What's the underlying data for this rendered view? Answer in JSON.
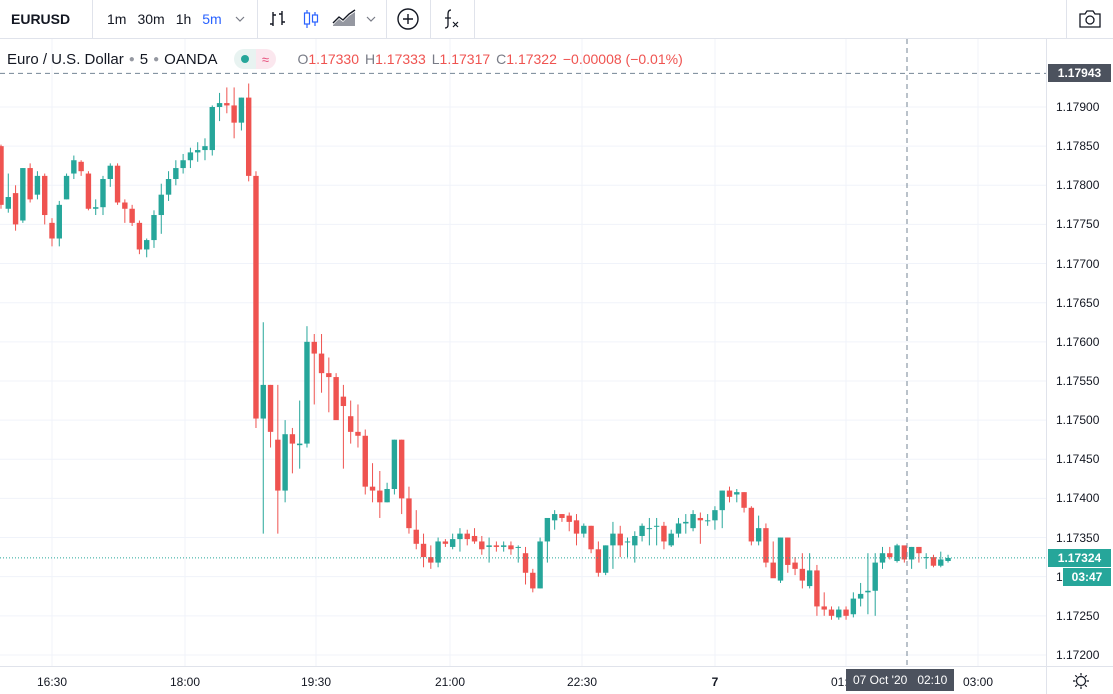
{
  "toolbar": {
    "symbol": "EURUSD",
    "intervals": [
      {
        "label": "1m",
        "active": false
      },
      {
        "label": "30m",
        "active": false
      },
      {
        "label": "1h",
        "active": false
      },
      {
        "label": "5m",
        "active": true
      }
    ],
    "icons": [
      "bars-style-icon",
      "candles-style-icon",
      "area-style-icon",
      "chevron-down-icon",
      "compare-add-icon",
      "indicators-fx-icon",
      "camera-icon"
    ]
  },
  "legend": {
    "title": "Euro / U.S. Dollar",
    "interval": "5",
    "source": "OANDA",
    "open_key": "O",
    "open": "1.17330",
    "high_key": "H",
    "high": "1.17333",
    "low_key": "L",
    "low": "1.17317",
    "close_key": "C",
    "close": "1.17322",
    "change": "−0.00008 (−0.01%)"
  },
  "colors": {
    "up": "#26a69a",
    "down": "#ef5350",
    "grid": "#f0f3fa",
    "crosshair_label": "#4c525e",
    "last_price": "#26a69a"
  },
  "price_axis": {
    "labels": [
      "1.17900",
      "1.17850",
      "1.17800",
      "1.17750",
      "1.17700",
      "1.17650",
      "1.17600",
      "1.17550",
      "1.17500",
      "1.17450",
      "1.17400",
      "1.17350",
      "1.17300",
      "1.17250",
      "1.17200"
    ],
    "crosshair_price": "1.17943",
    "last_price": "1.17324",
    "countdown": "03:47"
  },
  "time_axis": {
    "labels": [
      "16:30",
      "18:00",
      "19:30",
      "21:00",
      "22:30",
      "7",
      "01:30",
      "03:00"
    ],
    "crosshair_time": "07 Oct '20   02:10"
  },
  "chart_data": {
    "type": "candlestick",
    "title": "Euro / U.S. Dollar · 5 · OANDA",
    "xlabel": "",
    "ylabel": "",
    "ylim": [
      1.1718,
      1.1799
    ],
    "x_ticks": [
      "16:30",
      "18:00",
      "19:30",
      "21:00",
      "22:30",
      "7",
      "01:30",
      "03:00"
    ],
    "y_ticks": [
      1.172,
      1.1725,
      1.173,
      1.1735,
      1.174,
      1.1745,
      1.175,
      1.1755,
      1.176,
      1.1765,
      1.177,
      1.1775,
      1.178,
      1.1785,
      1.179
    ],
    "grid": true,
    "crosshair": {
      "price": 1.17943,
      "time": "07 Oct '20 02:10"
    },
    "last_price": 1.17324,
    "ohlc": [
      [
        1.1785,
        1.17852,
        1.1777,
        1.17775
      ],
      [
        1.1777,
        1.17815,
        1.17765,
        1.17785
      ],
      [
        1.1779,
        1.178,
        1.17742,
        1.1775
      ],
      [
        1.17755,
        1.17822,
        1.17752,
        1.17822
      ],
      [
        1.17822,
        1.17828,
        1.17778,
        1.17782
      ],
      [
        1.17788,
        1.17818,
        1.17782,
        1.17812
      ],
      [
        1.17812,
        1.17815,
        1.1775,
        1.17762
      ],
      [
        1.17752,
        1.17758,
        1.17722,
        1.17732
      ],
      [
        1.17732,
        1.1778,
        1.17722,
        1.17775
      ],
      [
        1.17782,
        1.17815,
        1.17782,
        1.17812
      ],
      [
        1.17815,
        1.17838,
        1.17808,
        1.17832
      ],
      [
        1.1783,
        1.17832,
        1.17812,
        1.17818
      ],
      [
        1.17815,
        1.17818,
        1.17768,
        1.1777
      ],
      [
        1.1777,
        1.17782,
        1.17762,
        1.17772
      ],
      [
        1.17772,
        1.17812,
        1.17762,
        1.17808
      ],
      [
        1.17808,
        1.17828,
        1.17798,
        1.17825
      ],
      [
        1.17825,
        1.17828,
        1.17775,
        1.17778
      ],
      [
        1.17778,
        1.17782,
        1.17752,
        1.1777
      ],
      [
        1.1777,
        1.17775,
        1.17748,
        1.17752
      ],
      [
        1.17752,
        1.17755,
        1.17712,
        1.17718
      ],
      [
        1.17718,
        1.17732,
        1.17708,
        1.1773
      ],
      [
        1.1773,
        1.17768,
        1.1772,
        1.17762
      ],
      [
        1.17762,
        1.17802,
        1.17738,
        1.17788
      ],
      [
        1.17788,
        1.17818,
        1.1778,
        1.17808
      ],
      [
        1.17808,
        1.17832,
        1.178,
        1.17822
      ],
      [
        1.17822,
        1.1784,
        1.17815,
        1.17832
      ],
      [
        1.17832,
        1.17848,
        1.17822,
        1.17842
      ],
      [
        1.17842,
        1.17855,
        1.1783,
        1.17845
      ],
      [
        1.17845,
        1.1786,
        1.17832,
        1.1785
      ],
      [
        1.17845,
        1.17902,
        1.17838,
        1.179
      ],
      [
        1.179,
        1.17918,
        1.17882,
        1.17905
      ],
      [
        1.17905,
        1.17925,
        1.17892,
        1.17902
      ],
      [
        1.17902,
        1.17925,
        1.1786,
        1.1788
      ],
      [
        1.1788,
        1.17912,
        1.1787,
        1.17912
      ],
      [
        1.17912,
        1.1793,
        1.17805,
        1.17812
      ],
      [
        1.17812,
        1.17818,
        1.1749,
        1.17502
      ],
      [
        1.17502,
        1.17625,
        1.17355,
        1.17545
      ],
      [
        1.17545,
        1.17545,
        1.17465,
        1.17485
      ],
      [
        1.17475,
        1.17545,
        1.17355,
        1.1741
      ],
      [
        1.1741,
        1.175,
        1.17395,
        1.17482
      ],
      [
        1.17482,
        1.1749,
        1.17432,
        1.1747
      ],
      [
        1.17468,
        1.17525,
        1.17438,
        1.1747
      ],
      [
        1.1747,
        1.1762,
        1.17465,
        1.176
      ],
      [
        1.176,
        1.1761,
        1.1752,
        1.17585
      ],
      [
        1.17585,
        1.1761,
        1.17535,
        1.1756
      ],
      [
        1.1756,
        1.1758,
        1.1751,
        1.17555
      ],
      [
        1.17555,
        1.1756,
        1.17525,
        1.175
      ],
      [
        1.1753,
        1.17545,
        1.17438,
        1.17518
      ],
      [
        1.17505,
        1.17525,
        1.1747,
        1.17485
      ],
      [
        1.17485,
        1.1752,
        1.17465,
        1.1748
      ],
      [
        1.1748,
        1.17488,
        1.17405,
        1.17415
      ],
      [
        1.17415,
        1.17445,
        1.17395,
        1.1741
      ],
      [
        1.1741,
        1.17435,
        1.17375,
        1.17395
      ],
      [
        1.17395,
        1.1742,
        1.17395,
        1.17412
      ],
      [
        1.17412,
        1.17475,
        1.17405,
        1.17475
      ],
      [
        1.17475,
        1.17475,
        1.1738,
        1.174
      ],
      [
        1.174,
        1.17415,
        1.17355,
        1.17362
      ],
      [
        1.1736,
        1.17385,
        1.17335,
        1.17342
      ],
      [
        1.17342,
        1.17355,
        1.17312,
        1.17325
      ],
      [
        1.17325,
        1.1734,
        1.1731,
        1.17318
      ],
      [
        1.17318,
        1.1735,
        1.17312,
        1.17345
      ],
      [
        1.17345,
        1.17348,
        1.17338,
        1.17342
      ],
      [
        1.17338,
        1.17355,
        1.17335,
        1.17348
      ],
      [
        1.17348,
        1.17362,
        1.17332,
        1.17355
      ],
      [
        1.17355,
        1.1736,
        1.1734,
        1.17348
      ],
      [
        1.17352,
        1.17362,
        1.17342,
        1.17345
      ],
      [
        1.17345,
        1.17352,
        1.17328,
        1.17335
      ],
      [
        1.17338,
        1.1735,
        1.17318,
        1.1734
      ],
      [
        1.1734,
        1.17345,
        1.17332,
        1.17338
      ],
      [
        1.17338,
        1.17345,
        1.17332,
        1.1734
      ],
      [
        1.1734,
        1.17345,
        1.17328,
        1.17335
      ],
      [
        1.17338,
        1.1734,
        1.17318,
        1.17338
      ],
      [
        1.1733,
        1.17338,
        1.1729,
        1.17305
      ],
      [
        1.17305,
        1.1731,
        1.1728,
        1.17285
      ],
      [
        1.17285,
        1.1735,
        1.17285,
        1.17345
      ],
      [
        1.17345,
        1.17362,
        1.17318,
        1.17375
      ],
      [
        1.17372,
        1.17385,
        1.1736,
        1.1738
      ],
      [
        1.1738,
        1.1738,
        1.1737,
        1.17375
      ],
      [
        1.17378,
        1.17382,
        1.17358,
        1.1737
      ],
      [
        1.17372,
        1.1738,
        1.1734,
        1.17355
      ],
      [
        1.17355,
        1.17368,
        1.1735,
        1.17365
      ],
      [
        1.17365,
        1.17365,
        1.1733,
        1.17335
      ],
      [
        1.17335,
        1.17345,
        1.173,
        1.17305
      ],
      [
        1.17305,
        1.1734,
        1.17302,
        1.1734
      ],
      [
        1.1734,
        1.1737,
        1.1731,
        1.17355
      ],
      [
        1.17355,
        1.17365,
        1.17325,
        1.1734
      ],
      [
        1.17345,
        1.1735,
        1.17325,
        1.17345
      ],
      [
        1.1734,
        1.17358,
        1.17318,
        1.17352
      ],
      [
        1.17352,
        1.17368,
        1.17345,
        1.17365
      ],
      [
        1.17362,
        1.17375,
        1.1734,
        1.17362
      ],
      [
        1.17365,
        1.17375,
        1.1734,
        1.17365
      ],
      [
        1.17365,
        1.1737,
        1.17335,
        1.17345
      ],
      [
        1.1734,
        1.1736,
        1.17338,
        1.17355
      ],
      [
        1.17355,
        1.17375,
        1.1735,
        1.17368
      ],
      [
        1.17368,
        1.1738,
        1.17355,
        1.1737
      ],
      [
        1.17362,
        1.17385,
        1.17358,
        1.1738
      ],
      [
        1.17375,
        1.17382,
        1.17342,
        1.17372
      ],
      [
        1.17372,
        1.1738,
        1.17365,
        1.17372
      ],
      [
        1.17372,
        1.1739,
        1.1736,
        1.17385
      ],
      [
        1.17385,
        1.1741,
        1.17362,
        1.1741
      ],
      [
        1.1741,
        1.17415,
        1.17395,
        1.17402
      ],
      [
        1.17405,
        1.17412,
        1.17395,
        1.17408
      ],
      [
        1.17408,
        1.17408,
        1.17382,
        1.17388
      ],
      [
        1.17388,
        1.1739,
        1.1734,
        1.17345
      ],
      [
        1.17345,
        1.17378,
        1.1734,
        1.17362
      ],
      [
        1.17362,
        1.17368,
        1.17312,
        1.17318
      ],
      [
        1.17318,
        1.17345,
        1.173,
        1.17298
      ],
      [
        1.17295,
        1.1735,
        1.17292,
        1.1735
      ],
      [
        1.1735,
        1.1735,
        1.17305,
        1.17315
      ],
      [
        1.17318,
        1.17325,
        1.17302,
        1.1731
      ],
      [
        1.1731,
        1.1733,
        1.17285,
        1.17295
      ],
      [
        1.17288,
        1.1733,
        1.17285,
        1.17308
      ],
      [
        1.17308,
        1.17315,
        1.1725,
        1.17262
      ],
      [
        1.17262,
        1.1728,
        1.1725,
        1.17258
      ],
      [
        1.17258,
        1.17262,
        1.17245,
        1.1725
      ],
      [
        1.17248,
        1.17262,
        1.17245,
        1.17258
      ],
      [
        1.17258,
        1.17262,
        1.17245,
        1.1725
      ],
      [
        1.17252,
        1.1728,
        1.17248,
        1.17272
      ],
      [
        1.17272,
        1.17292,
        1.17262,
        1.17278
      ],
      [
        1.1728,
        1.1733,
        1.17252,
        1.17282
      ],
      [
        1.17282,
        1.1733,
        1.1725,
        1.17318
      ],
      [
        1.17318,
        1.17338,
        1.1731,
        1.1733
      ],
      [
        1.1733,
        1.17338,
        1.17322,
        1.17325
      ],
      [
        1.1732,
        1.17342,
        1.17318,
        1.1734
      ],
      [
        1.1734,
        1.17338,
        1.17318,
        1.17322
      ],
      [
        1.17322,
        1.17338,
        1.1731,
        1.17338
      ],
      [
        1.17338,
        1.17338,
        1.17318,
        1.1733
      ],
      [
        1.17325,
        1.1733,
        1.1731,
        1.17325
      ],
      [
        1.17325,
        1.17328,
        1.17312,
        1.17314
      ],
      [
        1.17314,
        1.17332,
        1.17312,
        1.17322
      ],
      [
        1.1732,
        1.17328,
        1.17318,
        1.17324
      ]
    ]
  }
}
